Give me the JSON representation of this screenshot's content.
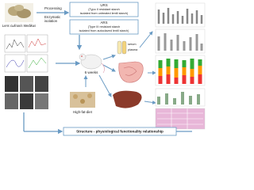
{
  "source": {
    "name": "Lens culinaris Medikus"
  },
  "steps": {
    "processing": "Processing",
    "isolation": [
      "Enzymatic",
      "isolation"
    ]
  },
  "products": [
    {
      "title": "URS",
      "description": [
        "(Typo II resistant starch",
        "isolated from untreated lentil starch)"
      ]
    },
    {
      "title": "ARS",
      "description": [
        "(Type III resistant starch",
        "isolated from autoclaved lentil starch)"
      ]
    }
  ],
  "experiment": {
    "duration": "6 weeks",
    "diet": "High-fat-diet",
    "samples": [
      "serum",
      "plasma"
    ]
  },
  "footer": "Structure - physiological functionality relationship"
}
